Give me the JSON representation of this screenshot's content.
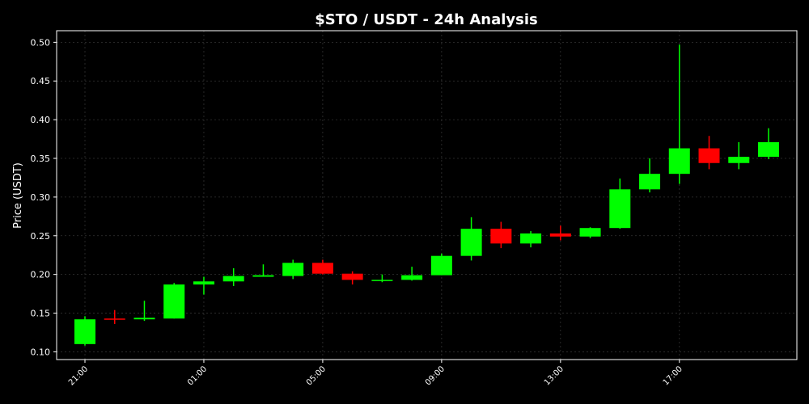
{
  "chart_data": {
    "type": "candlestick",
    "title": "$STO / USDT - 24h Analysis",
    "y_label": "Price (USDT)",
    "categories": [
      "21:00",
      null,
      null,
      null,
      "01:00",
      null,
      null,
      null,
      "05:00",
      null,
      null,
      null,
      "09:00",
      null,
      null,
      null,
      "13:00",
      null,
      null,
      null,
      "17:00",
      null,
      null,
      null
    ],
    "open": [
      0.11,
      0.143,
      0.142,
      0.143,
      0.187,
      0.191,
      0.197,
      0.198,
      0.215,
      0.201,
      0.192,
      0.193,
      0.199,
      0.224,
      0.259,
      0.24,
      0.253,
      0.249,
      0.26,
      0.31,
      0.33,
      0.363,
      0.344,
      0.352
    ],
    "high": [
      0.146,
      0.154,
      0.166,
      0.189,
      0.197,
      0.208,
      0.213,
      0.219,
      0.219,
      0.204,
      0.2,
      0.21,
      0.227,
      0.274,
      0.268,
      0.256,
      0.263,
      0.261,
      0.324,
      0.35,
      0.497,
      0.379,
      0.371,
      0.389
    ],
    "low": [
      0.108,
      0.136,
      0.14,
      0.143,
      0.174,
      0.185,
      0.197,
      0.194,
      0.2,
      0.187,
      0.19,
      0.192,
      0.199,
      0.218,
      0.234,
      0.235,
      0.244,
      0.247,
      0.259,
      0.306,
      0.317,
      0.336,
      0.336,
      0.349
    ],
    "close": [
      0.142,
      0.142,
      0.144,
      0.187,
      0.191,
      0.198,
      0.199,
      0.215,
      0.201,
      0.193,
      0.193,
      0.199,
      0.224,
      0.259,
      0.24,
      0.253,
      0.249,
      0.26,
      0.31,
      0.33,
      0.363,
      0.344,
      0.352,
      0.371
    ],
    "up_color": "#00ff00",
    "down_color": "#ff0000",
    "ylim": [
      0.09,
      0.515
    ],
    "yticks": [
      {
        "value": 0.1,
        "label": "0.10"
      },
      0.15,
      {
        "value": 0.2,
        "label": "0.20"
      },
      0.25,
      {
        "value": 0.3,
        "label": "0.30"
      },
      0.35,
      {
        "value": 0.4,
        "label": "0.40"
      },
      0.45,
      {
        "value": 0.5,
        "label": "0.50"
      }
    ],
    "grid": true
  }
}
